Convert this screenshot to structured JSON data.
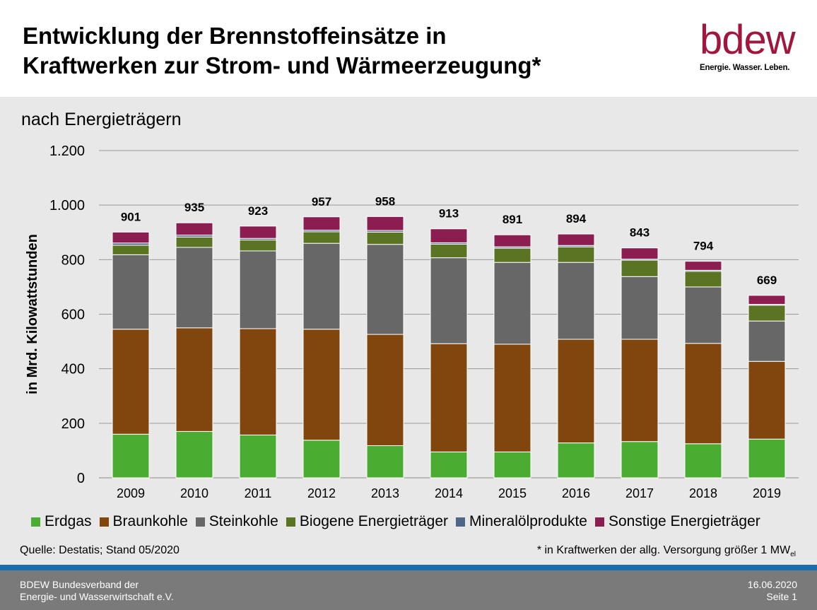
{
  "header": {
    "title": "Entwicklung der Brennstoffeinsätze in\nKraftwerken zur Strom- und Wärmeerzeugung*",
    "logo_word": "bdew",
    "logo_tagline": "Energie. Wasser. Leben."
  },
  "subtitle": "nach Energieträgern",
  "source": "Quelle: Destatis; Stand 05/2020",
  "footnote": {
    "text": "* in Kraftwerken der allg. Versorgung größer 1 MW",
    "sub": "el"
  },
  "footer": {
    "org": "BDEW Bundesverband der\nEnergie- und Wasserwirtschaft e.V.",
    "date": "16.06.2020",
    "page": "Seite 1"
  },
  "chart_data": {
    "type": "bar",
    "stacked": true,
    "ylabel": "in Mrd. Kilowattstunden",
    "ylim": [
      0,
      1200
    ],
    "yticks": [
      0,
      200,
      400,
      600,
      800,
      1000,
      1200
    ],
    "ytick_labels": [
      "0",
      "200",
      "400",
      "600",
      "800",
      "1.000",
      "1.200"
    ],
    "grid": true,
    "legend_position": "bottom",
    "categories": [
      "2009",
      "2010",
      "2011",
      "2012",
      "2013",
      "2014",
      "2015",
      "2016",
      "2017",
      "2018",
      "2019"
    ],
    "totals": [
      901,
      935,
      923,
      957,
      958,
      913,
      891,
      894,
      843,
      794,
      669
    ],
    "series": [
      {
        "name": "Erdgas",
        "color": "#4aac30",
        "values": [
          160,
          170,
          157,
          138,
          118,
          95,
          95,
          128,
          133,
          125,
          142
        ]
      },
      {
        "name": "Braunkohle",
        "color": "#80460e",
        "values": [
          385,
          380,
          390,
          407,
          408,
          397,
          395,
          380,
          375,
          368,
          285
        ]
      },
      {
        "name": "Steinkohle",
        "color": "#676767",
        "values": [
          273,
          295,
          285,
          315,
          330,
          315,
          300,
          282,
          230,
          207,
          148
        ]
      },
      {
        "name": "Biogene Energieträger",
        "color": "#5a7424",
        "values": [
          35,
          38,
          40,
          42,
          45,
          50,
          52,
          57,
          60,
          57,
          58
        ]
      },
      {
        "name": "Mineralölprodukte",
        "color": "#4f6688",
        "values": [
          8,
          7,
          6,
          6,
          6,
          5,
          5,
          5,
          4,
          4,
          3
        ]
      },
      {
        "name": "Sonstige Energieträger",
        "color": "#8b1d50",
        "values": [
          40,
          45,
          45,
          49,
          51,
          51,
          44,
          42,
          41,
          33,
          33
        ]
      }
    ]
  }
}
